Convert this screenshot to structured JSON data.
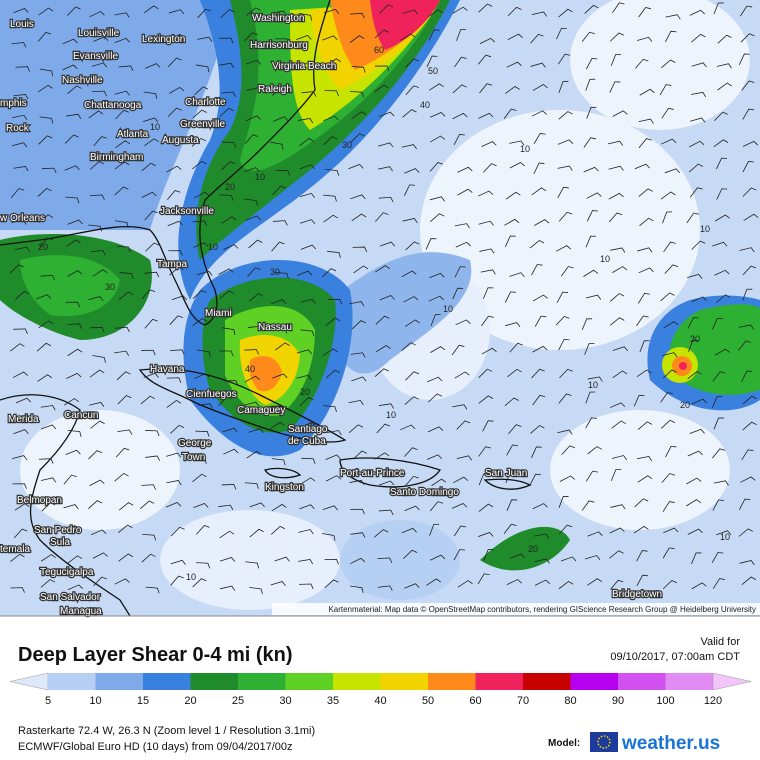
{
  "map": {
    "cities": [
      "Louis",
      "Louisville",
      "Lexington",
      "Washington",
      "Harrisonburg",
      "Evansville",
      "Virginia Beach",
      "Nashville",
      "Raleigh",
      "Charlotte",
      "mphis",
      "Chattanooga",
      "Greenville",
      "Rock",
      "Atlanta",
      "Augusta",
      "Birmingham",
      "Jacksonville",
      "w Orleans",
      "Tampa",
      "Miami",
      "Nassau",
      "Havana",
      "Cienfuegos",
      "Camaguey",
      "Merida",
      "Cancun",
      "George",
      "Town",
      "Santiago",
      "de Cuba",
      "Port-au-Prince",
      "Santo Domingo",
      "San Juan",
      "Kingston",
      "Belmopan",
      "San Pedro",
      "Sula",
      "temala",
      "Tegucigalpa",
      "San Salvador",
      "Managua",
      "Bridgetown"
    ],
    "contour_labels": [
      "10",
      "10",
      "20",
      "30",
      "50",
      "60",
      "40",
      "30",
      "20",
      "10",
      "10",
      "30",
      "10",
      "20",
      "10",
      "10",
      "30",
      "40",
      "20",
      "10",
      "10",
      "10",
      "20",
      "10"
    ],
    "attribution": "Kartenmaterial: Map data © OpenStreetMap contributors, rendering GIScience Research Group @ Heidelberg University"
  },
  "footer": {
    "title": "Deep Layer Shear 0-4 mi (kn)",
    "valid_label": "Valid for",
    "valid_time": "09/10/2017, 07:00am CDT",
    "scale_labels": [
      5,
      10,
      15,
      20,
      25,
      30,
      35,
      40,
      50,
      60,
      70,
      80,
      90,
      100,
      120
    ],
    "scale_colors": [
      "#dde9fb",
      "#b6d0f3",
      "#7eaaea",
      "#3a80df",
      "#1f8b2a",
      "#2eb032",
      "#5fd024",
      "#c6e400",
      "#f1d300",
      "#ff8a1c",
      "#f0225c",
      "#c70000",
      "#b800f0",
      "#d050f0",
      "#e08cf2",
      "#f2c6f8"
    ],
    "raster_info": "Rasterkarte 72.4 W, 26.3 N (Zoom level 1 / Resolution 3.1mi)",
    "model_run": "ECMWF/Global Euro HD (10 days) from 09/04/2017/00z",
    "model_label": "Model:",
    "brand": "weather.us"
  }
}
